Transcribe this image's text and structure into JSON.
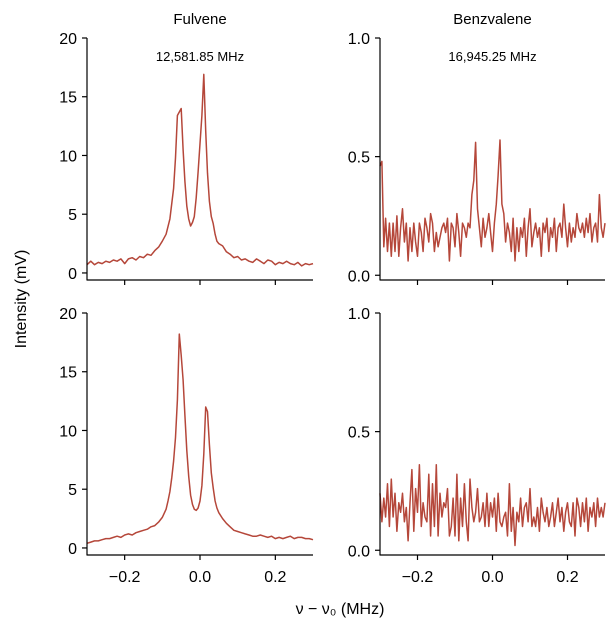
{
  "figure": {
    "ylabel": "Intensity (mV)",
    "xlabel": "ν − ν₀ (MHz)",
    "line_color": "#b5473a",
    "axis_color": "#000000"
  },
  "chart_data": [
    {
      "type": "line",
      "title": "Fulvene",
      "annotation": "12,581.85 MHz",
      "xlim": [
        -0.3,
        0.3
      ],
      "ylim": [
        -0.6,
        20.0
      ],
      "yticks": [
        0,
        5,
        10,
        15,
        20
      ],
      "ytick_labels": [
        "0",
        "5",
        "10",
        "15",
        "20"
      ],
      "xticks": [
        -0.2,
        0.0,
        0.2
      ],
      "xtick_labels": [],
      "series": [
        {
          "x": [
            -0.3,
            -0.29,
            -0.28,
            -0.27,
            -0.26,
            -0.25,
            -0.24,
            -0.23,
            -0.22,
            -0.21,
            -0.2,
            -0.19,
            -0.18,
            -0.17,
            -0.16,
            -0.15,
            -0.14,
            -0.13,
            -0.12,
            -0.11,
            -0.1,
            -0.09,
            -0.08,
            -0.07,
            -0.065,
            -0.06,
            -0.055,
            -0.05,
            -0.045,
            -0.04,
            -0.035,
            -0.03,
            -0.025,
            -0.02,
            -0.015,
            -0.01,
            -0.005,
            0.0,
            0.005,
            0.01,
            0.015,
            0.02,
            0.025,
            0.03,
            0.035,
            0.04,
            0.045,
            0.05,
            0.06,
            0.07,
            0.08,
            0.09,
            0.1,
            0.11,
            0.12,
            0.13,
            0.14,
            0.15,
            0.16,
            0.17,
            0.18,
            0.19,
            0.2,
            0.21,
            0.22,
            0.23,
            0.24,
            0.25,
            0.26,
            0.27,
            0.28,
            0.29,
            0.3
          ],
          "y": [
            0.7,
            1.0,
            0.7,
            0.9,
            0.8,
            1.0,
            0.9,
            1.1,
            1.0,
            1.2,
            0.8,
            1.2,
            1.3,
            1.1,
            1.4,
            1.3,
            1.6,
            1.5,
            1.9,
            2.2,
            2.7,
            3.3,
            4.6,
            7.2,
            9.8,
            13.4,
            13.7,
            14.0,
            10.5,
            7.8,
            5.7,
            4.6,
            4.0,
            4.3,
            4.8,
            6.4,
            8.6,
            11.0,
            13.4,
            16.9,
            12.1,
            8.5,
            6.1,
            4.8,
            4.2,
            3.3,
            2.7,
            2.5,
            2.3,
            1.8,
            1.6,
            1.3,
            1.4,
            1.1,
            1.2,
            1.0,
            0.9,
            1.2,
            1.0,
            0.8,
            1.1,
            1.0,
            0.7,
            0.9,
            0.8,
            1.0,
            0.8,
            0.7,
            0.9,
            0.6,
            0.8,
            0.7,
            0.8
          ]
        }
      ]
    },
    {
      "type": "line",
      "title": "Benzvalene",
      "annotation": "16,945.25 MHz",
      "xlim": [
        -0.3,
        0.3
      ],
      "ylim": [
        -0.02,
        1.0
      ],
      "yticks": [
        0.0,
        0.5,
        1.0
      ],
      "ytick_labels": [
        "0.0",
        "0.5",
        "1.0"
      ],
      "xticks": [
        -0.2,
        0.0,
        0.2
      ],
      "xtick_labels": [],
      "series": [
        {
          "x": [
            -0.3,
            -0.295,
            -0.29,
            -0.285,
            -0.28,
            -0.275,
            -0.27,
            -0.265,
            -0.26,
            -0.255,
            -0.25,
            -0.245,
            -0.24,
            -0.235,
            -0.23,
            -0.225,
            -0.22,
            -0.215,
            -0.21,
            -0.205,
            -0.2,
            -0.195,
            -0.19,
            -0.185,
            -0.18,
            -0.175,
            -0.17,
            -0.165,
            -0.16,
            -0.155,
            -0.15,
            -0.145,
            -0.14,
            -0.135,
            -0.13,
            -0.125,
            -0.12,
            -0.115,
            -0.11,
            -0.105,
            -0.1,
            -0.095,
            -0.09,
            -0.085,
            -0.08,
            -0.075,
            -0.07,
            -0.065,
            -0.06,
            -0.055,
            -0.05,
            -0.045,
            -0.04,
            -0.035,
            -0.03,
            -0.025,
            -0.02,
            -0.015,
            -0.01,
            -0.005,
            0.0,
            0.005,
            0.01,
            0.015,
            0.02,
            0.025,
            0.03,
            0.035,
            0.04,
            0.045,
            0.05,
            0.055,
            0.06,
            0.065,
            0.07,
            0.075,
            0.08,
            0.085,
            0.09,
            0.095,
            0.1,
            0.105,
            0.11,
            0.115,
            0.12,
            0.125,
            0.13,
            0.135,
            0.14,
            0.145,
            0.15,
            0.155,
            0.16,
            0.165,
            0.17,
            0.175,
            0.18,
            0.185,
            0.19,
            0.195,
            0.2,
            0.205,
            0.21,
            0.215,
            0.22,
            0.225,
            0.23,
            0.235,
            0.24,
            0.245,
            0.25,
            0.255,
            0.26,
            0.265,
            0.27,
            0.275,
            0.28,
            0.285,
            0.29,
            0.295,
            0.3
          ],
          "y": [
            0.46,
            0.48,
            0.12,
            0.24,
            0.1,
            0.22,
            0.08,
            0.22,
            0.1,
            0.25,
            0.08,
            0.2,
            0.28,
            0.14,
            0.22,
            0.06,
            0.2,
            0.1,
            0.22,
            0.14,
            0.08,
            0.22,
            0.18,
            0.1,
            0.24,
            0.2,
            0.14,
            0.26,
            0.22,
            0.1,
            0.18,
            0.12,
            0.16,
            0.2,
            0.22,
            0.18,
            0.24,
            0.06,
            0.22,
            0.2,
            0.12,
            0.26,
            0.18,
            0.08,
            0.22,
            0.2,
            0.16,
            0.22,
            0.2,
            0.34,
            0.4,
            0.56,
            0.28,
            0.2,
            0.12,
            0.24,
            0.16,
            0.2,
            0.26,
            0.18,
            0.1,
            0.22,
            0.3,
            0.42,
            0.57,
            0.3,
            0.26,
            0.14,
            0.22,
            0.18,
            0.1,
            0.24,
            0.06,
            0.2,
            0.1,
            0.2,
            0.16,
            0.24,
            0.08,
            0.2,
            0.28,
            0.12,
            0.18,
            0.22,
            0.16,
            0.2,
            0.08,
            0.22,
            0.18,
            0.24,
            0.1,
            0.2,
            0.16,
            0.24,
            0.1,
            0.2,
            0.22,
            0.16,
            0.3,
            0.2,
            0.12,
            0.22,
            0.14,
            0.2,
            0.16,
            0.26,
            0.2,
            0.18,
            0.22,
            0.16,
            0.24,
            0.18,
            0.26,
            0.14,
            0.2,
            0.22,
            0.14,
            0.34,
            0.2,
            0.16,
            0.22
          ]
        }
      ]
    },
    {
      "type": "line",
      "title": "",
      "annotation": "",
      "xlim": [
        -0.3,
        0.3
      ],
      "ylim": [
        -0.6,
        20.0
      ],
      "yticks": [
        0,
        5,
        10,
        15,
        20
      ],
      "ytick_labels": [
        "0",
        "5",
        "10",
        "15",
        "20"
      ],
      "xticks": [
        -0.2,
        0.0,
        0.2
      ],
      "xtick_labels": [
        "−0.2",
        "0.0",
        "0.2"
      ],
      "series": [
        {
          "x": [
            -0.3,
            -0.29,
            -0.28,
            -0.27,
            -0.26,
            -0.25,
            -0.24,
            -0.23,
            -0.22,
            -0.21,
            -0.2,
            -0.19,
            -0.18,
            -0.17,
            -0.16,
            -0.15,
            -0.14,
            -0.13,
            -0.12,
            -0.11,
            -0.1,
            -0.09,
            -0.085,
            -0.08,
            -0.075,
            -0.07,
            -0.065,
            -0.06,
            -0.055,
            -0.05,
            -0.045,
            -0.04,
            -0.035,
            -0.03,
            -0.025,
            -0.02,
            -0.015,
            -0.01,
            -0.005,
            0.0,
            0.005,
            0.01,
            0.015,
            0.02,
            0.025,
            0.03,
            0.035,
            0.04,
            0.045,
            0.05,
            0.06,
            0.07,
            0.08,
            0.09,
            0.1,
            0.11,
            0.12,
            0.13,
            0.14,
            0.15,
            0.16,
            0.17,
            0.18,
            0.19,
            0.2,
            0.21,
            0.22,
            0.23,
            0.24,
            0.25,
            0.26,
            0.27,
            0.28,
            0.29,
            0.3
          ],
          "y": [
            0.4,
            0.5,
            0.6,
            0.6,
            0.7,
            0.8,
            0.8,
            0.9,
            1.0,
            0.9,
            1.1,
            1.2,
            1.1,
            1.3,
            1.4,
            1.5,
            1.6,
            1.8,
            1.9,
            2.2,
            2.6,
            3.3,
            4.0,
            4.8,
            6.0,
            7.4,
            9.4,
            12.6,
            18.2,
            16.4,
            14.3,
            11.3,
            8.3,
            6.1,
            4.5,
            3.7,
            3.3,
            3.2,
            3.4,
            4.0,
            5.3,
            8.0,
            12.0,
            11.6,
            8.8,
            6.4,
            5.1,
            4.0,
            3.4,
            3.0,
            2.5,
            2.1,
            1.8,
            1.5,
            1.4,
            1.3,
            1.2,
            1.1,
            1.0,
            1.0,
            1.1,
            1.0,
            0.9,
            1.0,
            0.8,
            0.9,
            0.8,
            0.9,
            1.0,
            0.8,
            0.9,
            0.9,
            0.8,
            0.8,
            0.7
          ]
        }
      ]
    },
    {
      "type": "line",
      "title": "",
      "annotation": "",
      "xlim": [
        -0.3,
        0.3
      ],
      "ylim": [
        -0.02,
        1.0
      ],
      "yticks": [
        0.0,
        0.5,
        1.0
      ],
      "ytick_labels": [
        "0.0",
        "0.5",
        "1.0"
      ],
      "xticks": [
        -0.2,
        0.0,
        0.2
      ],
      "xtick_labels": [
        "−0.2",
        "0.0",
        "0.2"
      ],
      "series": [
        {
          "x": [
            -0.3,
            -0.295,
            -0.29,
            -0.285,
            -0.28,
            -0.275,
            -0.27,
            -0.265,
            -0.26,
            -0.255,
            -0.25,
            -0.245,
            -0.24,
            -0.235,
            -0.23,
            -0.225,
            -0.22,
            -0.215,
            -0.21,
            -0.205,
            -0.2,
            -0.195,
            -0.19,
            -0.185,
            -0.18,
            -0.175,
            -0.17,
            -0.165,
            -0.16,
            -0.155,
            -0.15,
            -0.145,
            -0.14,
            -0.135,
            -0.13,
            -0.125,
            -0.12,
            -0.115,
            -0.11,
            -0.105,
            -0.1,
            -0.095,
            -0.09,
            -0.085,
            -0.08,
            -0.075,
            -0.07,
            -0.065,
            -0.06,
            -0.055,
            -0.05,
            -0.045,
            -0.04,
            -0.035,
            -0.03,
            -0.025,
            -0.02,
            -0.015,
            -0.01,
            -0.005,
            0.0,
            0.005,
            0.01,
            0.015,
            0.02,
            0.025,
            0.03,
            0.035,
            0.04,
            0.045,
            0.05,
            0.055,
            0.06,
            0.065,
            0.07,
            0.075,
            0.08,
            0.085,
            0.09,
            0.095,
            0.1,
            0.105,
            0.11,
            0.115,
            0.12,
            0.125,
            0.13,
            0.135,
            0.14,
            0.145,
            0.15,
            0.155,
            0.16,
            0.165,
            0.17,
            0.175,
            0.18,
            0.185,
            0.19,
            0.195,
            0.2,
            0.205,
            0.21,
            0.215,
            0.22,
            0.225,
            0.23,
            0.235,
            0.24,
            0.245,
            0.25,
            0.255,
            0.26,
            0.265,
            0.27,
            0.275,
            0.28,
            0.285,
            0.29,
            0.295,
            0.3
          ],
          "y": [
            0.24,
            0.12,
            0.22,
            0.14,
            0.28,
            0.1,
            0.3,
            0.14,
            0.24,
            0.08,
            0.2,
            0.16,
            0.24,
            0.12,
            0.18,
            0.04,
            0.2,
            0.34,
            0.08,
            0.26,
            0.16,
            0.36,
            0.1,
            0.2,
            0.14,
            0.12,
            0.32,
            0.06,
            0.28,
            0.1,
            0.36,
            0.06,
            0.24,
            0.14,
            0.2,
            0.18,
            0.26,
            0.06,
            0.1,
            0.22,
            0.06,
            0.32,
            0.04,
            0.22,
            0.1,
            0.28,
            0.12,
            0.04,
            0.3,
            0.18,
            0.12,
            0.16,
            0.26,
            0.12,
            0.14,
            0.2,
            0.1,
            0.24,
            0.1,
            0.2,
            0.14,
            0.22,
            0.08,
            0.24,
            0.12,
            0.1,
            0.14,
            0.16,
            0.06,
            0.28,
            0.08,
            0.18,
            0.02,
            0.16,
            0.12,
            0.22,
            0.1,
            0.18,
            0.2,
            0.12,
            0.26,
            0.1,
            0.14,
            0.1,
            0.18,
            0.08,
            0.22,
            0.16,
            0.12,
            0.18,
            0.1,
            0.14,
            0.2,
            0.1,
            0.16,
            0.22,
            0.12,
            0.18,
            0.08,
            0.16,
            0.2,
            0.12,
            0.1,
            0.2,
            0.06,
            0.22,
            0.18,
            0.1,
            0.2,
            0.12,
            0.22,
            0.08,
            0.18,
            0.14,
            0.2,
            0.1,
            0.22,
            0.14,
            0.18,
            0.14,
            0.2
          ]
        }
      ]
    }
  ]
}
